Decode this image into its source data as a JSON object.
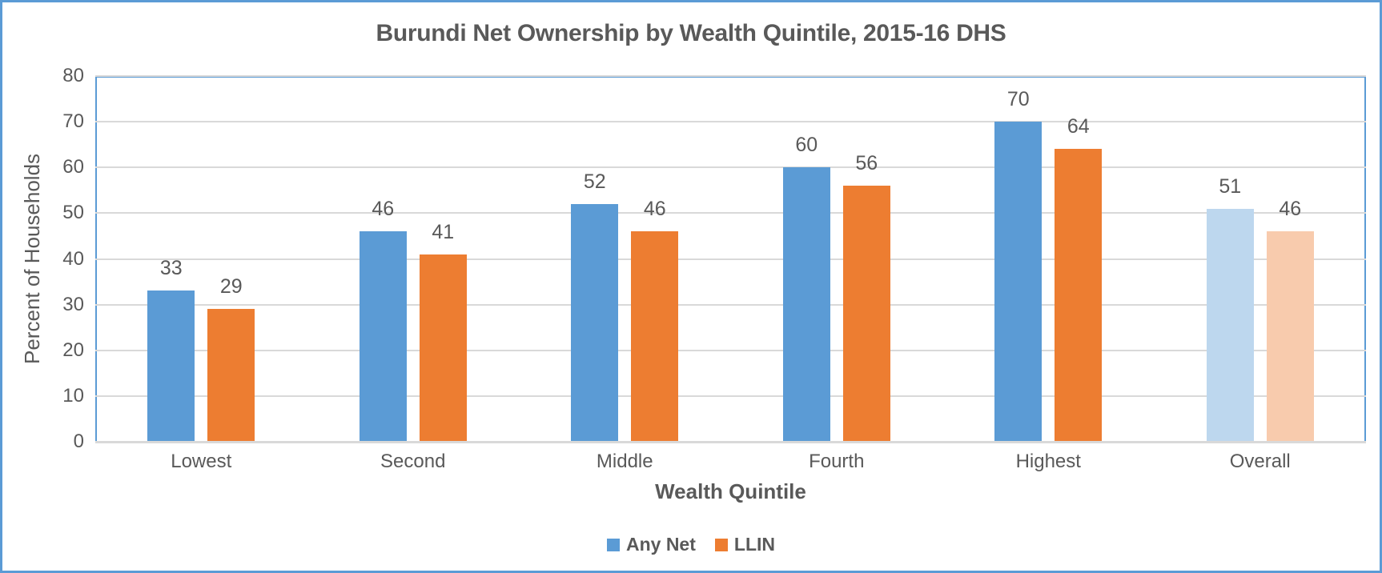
{
  "chart_data": {
    "type": "bar",
    "title": "Burundi Net Ownership by Wealth Quintile, 2015-16 DHS",
    "xlabel": "Wealth Quintile",
    "ylabel": "Percent of Households",
    "categories": [
      "Lowest",
      "Second",
      "Middle",
      "Fourth",
      "Highest",
      "Overall"
    ],
    "series": [
      {
        "name": "Any Net",
        "values": [
          33,
          46,
          52,
          60,
          70,
          51
        ],
        "color": "#5B9BD5",
        "point_colors": [
          "#5B9BD5",
          "#5B9BD5",
          "#5B9BD5",
          "#5B9BD5",
          "#5B9BD5",
          "#BDD7EE"
        ]
      },
      {
        "name": "LLIN",
        "values": [
          29,
          41,
          46,
          56,
          64,
          46
        ],
        "color": "#ED7D31",
        "point_colors": [
          "#ED7D31",
          "#ED7D31",
          "#ED7D31",
          "#ED7D31",
          "#ED7D31",
          "#F8CBAD"
        ]
      }
    ],
    "ylim": [
      0,
      80
    ],
    "ytick_step": 10,
    "yticks": [
      0,
      10,
      20,
      30,
      40,
      50,
      60,
      70,
      80
    ],
    "grid": true,
    "data_labels": true,
    "legend_position": "bottom"
  },
  "style": {
    "text_color": "#595959",
    "gridline_color": "#D9D9D9",
    "plot_border_color": "#5B9BD5",
    "outer_border_color": "#5B9BD5",
    "background_color": "#FFFFFF"
  }
}
